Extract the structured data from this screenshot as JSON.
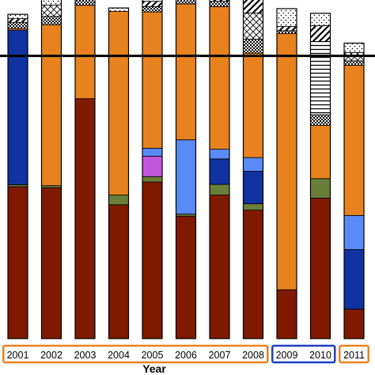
{
  "chart_data": {
    "type": "bar",
    "stacked": true,
    "xlabel": "Year",
    "ylabel": "",
    "ylim": [
      0,
      100
    ],
    "grid": false,
    "reference_line": 84.5,
    "categories": [
      "2001",
      "2002",
      "2003",
      "2004",
      "2005",
      "2006",
      "2007",
      "2008",
      "2009",
      "2010",
      "2011"
    ],
    "category_groups": [
      {
        "from": 0,
        "to": 7,
        "color": "#E8821E"
      },
      {
        "from": 8,
        "to": 9,
        "color": "#1F3FBF"
      },
      {
        "from": 10,
        "to": 10,
        "color": "#E8821E"
      }
    ],
    "series": [
      {
        "fill": "#7F1A00",
        "values": [
          45.4,
          45.1,
          71.7,
          40.0,
          46.8,
          36.6,
          42.9,
          38.4,
          14.6,
          42.0,
          8.8
        ]
      },
      {
        "fill": "#6B7F3A",
        "values": [
          0.6,
          0.6,
          0,
          2.9,
          1.6,
          0.6,
          3.2,
          1.9,
          0,
          5.8,
          0
        ]
      },
      {
        "fill": "#1133A0",
        "values": [
          46.2,
          0,
          0,
          0,
          0,
          0,
          7.6,
          9.7,
          0,
          0,
          17.8
        ]
      },
      {
        "fill": "#C155DD",
        "values": [
          0,
          0,
          0,
          0,
          6.1,
          0,
          0,
          0,
          0,
          0,
          0
        ]
      },
      {
        "fill": "#5A8AF5",
        "values": [
          0,
          0,
          0,
          0,
          2.4,
          22.2,
          2.9,
          4.1,
          0,
          0,
          10.2
        ]
      },
      {
        "fill": "#E8821E",
        "values": [
          0.5,
          48.1,
          27.9,
          54.9,
          40.7,
          40.6,
          42.6,
          31.2,
          76.6,
          15.9,
          44.9
        ]
      },
      {
        "fill": "#FFFFFF",
        "pattern": "checker",
        "values": [
          1.8,
          2.5,
          2.2,
          0,
          1.6,
          1.6,
          1.6,
          4.2,
          0.8,
          3.2,
          1.3
        ]
      },
      {
        "fill": "#FFFFFF",
        "pattern": "hlines",
        "values": [
          0,
          0,
          0,
          0,
          0,
          0,
          0,
          0,
          0,
          21.9,
          0
        ]
      },
      {
        "fill": "#FFFFFF",
        "pattern": "crosshatch",
        "values": [
          0,
          3.4,
          0,
          0,
          0,
          0,
          0,
          7.8,
          0,
          0,
          2.5
        ]
      },
      {
        "fill": "#FFFFFF",
        "pattern": "diagonal",
        "values": [
          1.1,
          0,
          0,
          0,
          1.6,
          1.4,
          1.6,
          6.7,
          1.3,
          4.7,
          0
        ]
      },
      {
        "fill": "#FFFFFF",
        "pattern": "dots",
        "values": [
          1.3,
          2.8,
          0,
          1.0,
          1.6,
          1.4,
          1.0,
          0.3,
          5.3,
          3.7,
          2.8
        ]
      }
    ]
  }
}
